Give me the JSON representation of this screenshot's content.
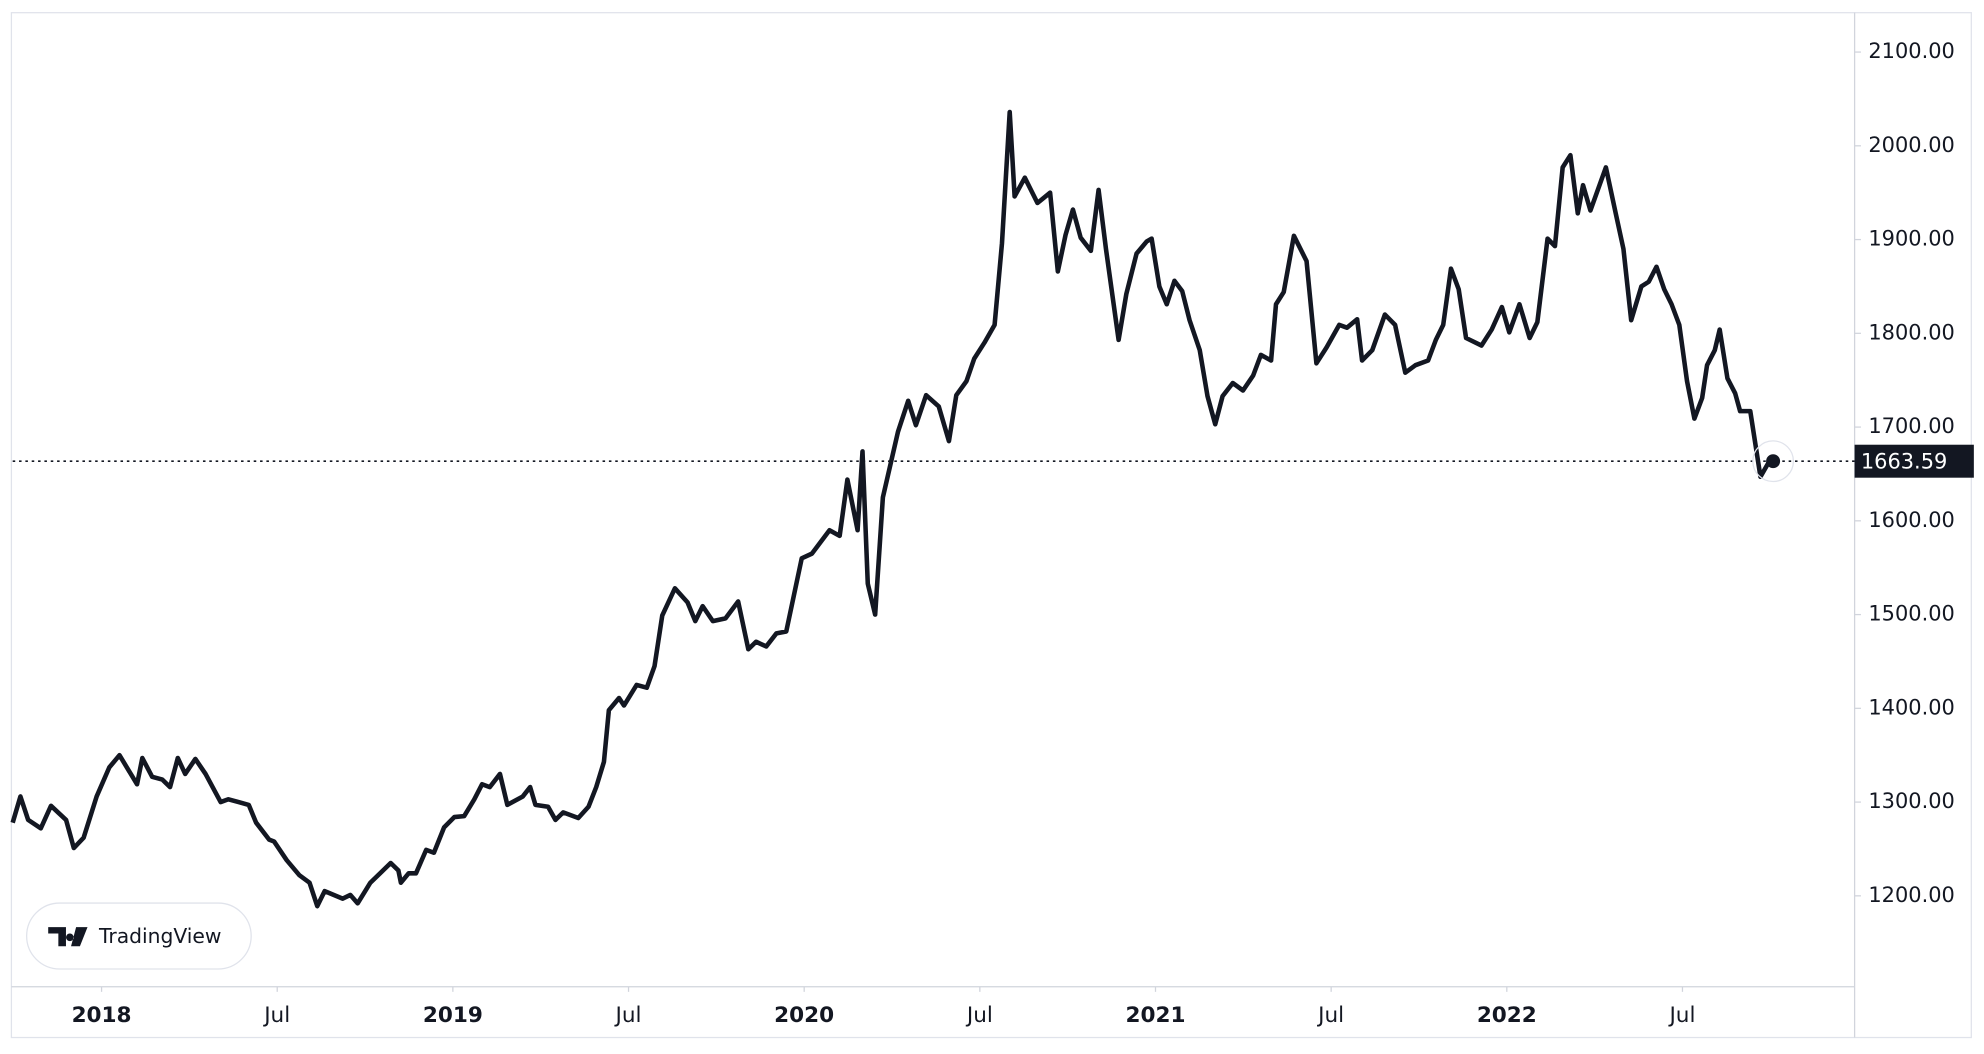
{
  "chart_data": {
    "type": "line",
    "color": "#131722",
    "watermark": "TradingView",
    "x": [
      2017.747,
      2017.769,
      2017.791,
      2017.827,
      2017.856,
      2017.899,
      2017.921,
      2017.949,
      2017.986,
      2018.022,
      2018.051,
      2018.072,
      2018.101,
      2018.116,
      2018.144,
      2018.173,
      2018.195,
      2018.217,
      2018.238,
      2018.267,
      2018.296,
      2018.339,
      2018.361,
      2018.39,
      2018.419,
      2018.44,
      2018.477,
      2018.491,
      2018.527,
      2018.563,
      2018.592,
      2018.614,
      2018.635,
      2018.686,
      2018.708,
      2018.729,
      2018.765,
      2018.801,
      2018.823,
      2018.845,
      2018.852,
      2018.874,
      2018.895,
      2018.924,
      2018.946,
      2018.975,
      2019.004,
      2019.032,
      2019.061,
      2019.083,
      2019.105,
      2019.134,
      2019.155,
      2019.199,
      2019.22,
      2019.235,
      2019.271,
      2019.292,
      2019.314,
      2019.357,
      2019.386,
      2019.408,
      2019.43,
      2019.444,
      2019.473,
      2019.487,
      2019.523,
      2019.552,
      2019.574,
      2019.596,
      2019.632,
      2019.668,
      2019.69,
      2019.711,
      2019.74,
      2019.776,
      2019.812,
      2019.841,
      2019.863,
      2019.892,
      2019.921,
      2019.949,
      2019.993,
      2020.022,
      2020.072,
      2020.101,
      2020.123,
      2020.152,
      2020.166,
      2020.181,
      2020.202,
      2020.224,
      2020.267,
      2020.296,
      2020.318,
      2020.347,
      2020.383,
      2020.412,
      2020.433,
      2020.462,
      2020.484,
      2020.513,
      2020.542,
      2020.563,
      2020.585,
      2020.599,
      2020.628,
      2020.664,
      2020.7,
      2020.722,
      2020.744,
      2020.765,
      2020.787,
      2020.816,
      2020.838,
      2020.859,
      2020.895,
      2020.917,
      2020.946,
      2020.975,
      2020.989,
      2021.011,
      2021.032,
      2021.054,
      2021.076,
      2021.097,
      2021.126,
      2021.148,
      2021.17,
      2021.191,
      2021.22,
      2021.249,
      2021.278,
      2021.3,
      2021.329,
      2021.343,
      2021.365,
      2021.394,
      2021.43,
      2021.458,
      2021.487,
      2021.523,
      2021.545,
      2021.574,
      2021.588,
      2021.617,
      2021.653,
      2021.682,
      2021.711,
      2021.74,
      2021.776,
      2021.798,
      2021.819,
      2021.841,
      2021.863,
      2021.884,
      2021.928,
      2021.957,
      2021.986,
      2022.007,
      2022.036,
      2022.065,
      2022.087,
      2022.116,
      2022.137,
      2022.159,
      2022.181,
      2022.202,
      2022.217,
      2022.238,
      2022.282,
      2022.31,
      2022.332,
      2022.354,
      2022.383,
      2022.404,
      2022.426,
      2022.448,
      2022.469,
      2022.491,
      2022.513,
      2022.534,
      2022.556,
      2022.57,
      2022.592,
      2022.606,
      2022.628,
      2022.65,
      2022.664,
      2022.693,
      2022.722,
      2022.751,
      2022.758
    ],
    "values": [
      1278,
      1306,
      1281,
      1272,
      1296,
      1281,
      1251,
      1262,
      1306,
      1337,
      1350,
      1337,
      1319,
      1347,
      1327,
      1324,
      1316,
      1347,
      1330,
      1346,
      1330,
      1300,
      1303,
      1300,
      1297,
      1278,
      1260,
      1258,
      1238,
      1222,
      1214,
      1189,
      1205,
      1197,
      1201,
      1192,
      1214,
      1227,
      1235,
      1227,
      1214,
      1224,
      1224,
      1249,
      1246,
      1273,
      1284,
      1285,
      1303,
      1319,
      1316,
      1330,
      1297,
      1306,
      1316,
      1297,
      1295,
      1281,
      1289,
      1283,
      1295,
      1316,
      1343,
      1398,
      1411,
      1403,
      1425,
      1422,
      1445,
      1499,
      1528,
      1513,
      1493,
      1509,
      1493,
      1496,
      1514,
      1463,
      1471,
      1466,
      1480,
      1482,
      1560,
      1565,
      1590,
      1584,
      1644,
      1590,
      1674,
      1533,
      1500,
      1625,
      1695,
      1728,
      1702,
      1734,
      1722,
      1685,
      1734,
      1749,
      1773,
      1790,
      1809,
      1896,
      2036,
      1946,
      1966,
      1939,
      1950,
      1866,
      1905,
      1932,
      1902,
      1888,
      1953,
      1890,
      1793,
      1842,
      1885,
      1898,
      1901,
      1850,
      1831,
      1856,
      1845,
      1814,
      1782,
      1733,
      1703,
      1733,
      1747,
      1739,
      1755,
      1777,
      1771,
      1831,
      1844,
      1904,
      1877,
      1768,
      1785,
      1809,
      1806,
      1815,
      1771,
      1782,
      1820,
      1809,
      1758,
      1766,
      1771,
      1793,
      1809,
      1869,
      1847,
      1795,
      1787,
      1804,
      1828,
      1801,
      1831,
      1795,
      1812,
      1901,
      1893,
      1977,
      1990,
      1928,
      1958,
      1931,
      1977,
      1928,
      1890,
      1814,
      1850,
      1855,
      1871,
      1847,
      1831,
      1809,
      1749,
      1709,
      1731,
      1766,
      1782,
      1804,
      1752,
      1736,
      1717,
      1717,
      1647,
      1666,
      1663.59
    ],
    "xlim": [
      2017.747,
      2022.99
    ],
    "xticks": [
      2018,
      {
        "value": 2018.5,
        "label": "Jul"
      },
      2019,
      {
        "value": 2019.5,
        "label": "Jul"
      },
      2020,
      {
        "value": 2020.5,
        "label": "Jul"
      },
      2021,
      {
        "value": 2021.5,
        "label": "Jul"
      },
      2022,
      {
        "value": 2022.5,
        "label": "Jul"
      }
    ],
    "ylim": [
      1103,
      2142
    ],
    "yticks": [
      {
        "value": 1200,
        "label": "1200.00"
      },
      {
        "value": 1300,
        "label": "1300.00"
      },
      {
        "value": 1400,
        "label": "1400.00"
      },
      {
        "value": 1500,
        "label": "1500.00"
      },
      {
        "value": 1600,
        "label": "1600.00"
      },
      {
        "value": 1700,
        "label": "1700.00"
      },
      {
        "value": 1800,
        "label": "1800.00"
      },
      {
        "value": 1900,
        "label": "1900.00"
      },
      {
        "value": 2000,
        "label": "2000.00"
      },
      {
        "value": 2100,
        "label": "2100.00"
      }
    ]
  }
}
